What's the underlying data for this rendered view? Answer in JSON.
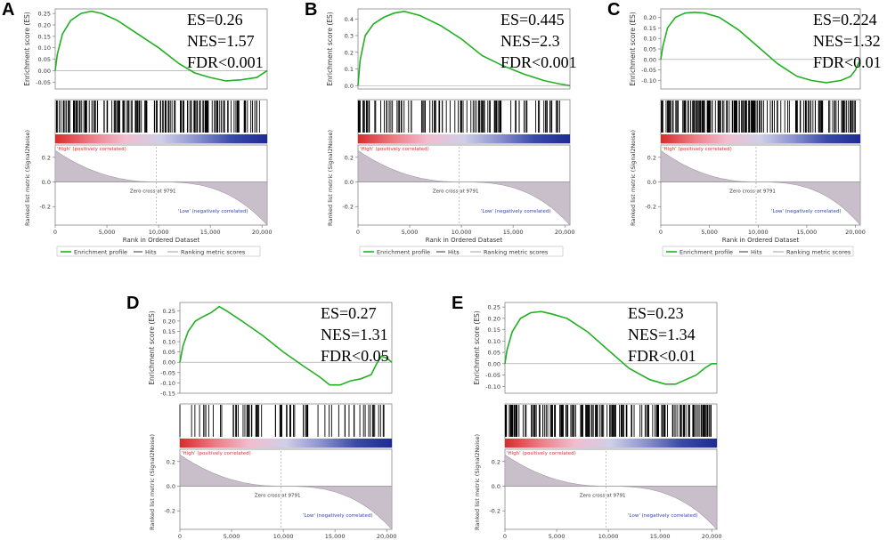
{
  "colors": {
    "es_line": "#22b022",
    "hit_line": "#000000",
    "metric_fill": "#c9bfcb",
    "metric_stroke": "#a598a8",
    "zero_line": "#999999",
    "gradient": [
      "#d72c2c",
      "#ee7d86",
      "#f2bdd0",
      "#cfcfe8",
      "#8a90cd",
      "#3a4aa8",
      "#1e2b94"
    ]
  },
  "common": {
    "es_ylabel": "Enrichment score (ES)",
    "metric_ylabel": "Ranked list metric (Signal2Noise)",
    "xlabel": "Rank in Ordered Dataset",
    "high_label": "'High' (positively correlated)",
    "low_label": "'Low' (negatively correlated)",
    "zero_cross": "Zero cross at 9791",
    "legend": [
      "Enrichment profile",
      "Hits",
      "Ranking metric scores"
    ],
    "x_ticks": [
      "0",
      "5,000",
      "10,000",
      "15,000",
      "20,000"
    ],
    "metric_ticks": [
      "0.2",
      "0.0",
      "-0.2"
    ]
  },
  "panels": [
    {
      "letter": "A",
      "stats": {
        "es": "ES=0.26",
        "nes": "NES=1.57",
        "fdr": "FDR<0.001"
      },
      "chart_data": {
        "type": "line",
        "title": "",
        "xlabel": "Rank in Ordered Dataset",
        "ylabel": "Enrichment score (ES)",
        "xlim": [
          0,
          20500
        ],
        "ylim": [
          -0.08,
          0.27
        ],
        "y_ticks": [
          0.25,
          0.2,
          0.15,
          0.1,
          0.05,
          0.0,
          -0.05
        ],
        "y_tick_labels": [
          "0.25",
          "0.20",
          "0.15",
          "0.10",
          "0.05",
          "0.00",
          "-0.05"
        ],
        "es_curve": {
          "x": [
            0,
            200,
            700,
            1500,
            2500,
            3500,
            4500,
            6000,
            8000,
            10000,
            12000,
            13500,
            15000,
            16500,
            18000,
            19500,
            20500
          ],
          "y": [
            0,
            0.07,
            0.16,
            0.22,
            0.25,
            0.26,
            0.25,
            0.22,
            0.16,
            0.1,
            0.03,
            -0.01,
            -0.03,
            -0.045,
            -0.04,
            -0.03,
            0.0
          ]
        },
        "hit_count": 170,
        "hit_density": "dense",
        "hits_end": 20000,
        "zero_cross": 9791,
        "metric_range": [
          0.3,
          -0.35
        ]
      }
    },
    {
      "letter": "B",
      "stats": {
        "es": "ES=0.445",
        "nes": "NES=2.3",
        "fdr": "FDR<0.001"
      },
      "chart_data": {
        "type": "line",
        "title": "",
        "xlabel": "Rank in Ordered Dataset",
        "ylabel": "Enrichment score (ES)",
        "xlim": [
          0,
          20500
        ],
        "ylim": [
          -0.02,
          0.46
        ],
        "y_ticks": [
          0.4,
          0.3,
          0.2,
          0.1,
          0.0
        ],
        "y_tick_labels": [
          "0.4",
          "0.3",
          "0.2",
          "0.1",
          "0.0"
        ],
        "es_curve": {
          "x": [
            0,
            200,
            700,
            1500,
            2500,
            3500,
            4500,
            6000,
            8000,
            10000,
            12000,
            14000,
            16000,
            18000,
            19500,
            20500
          ],
          "y": [
            0,
            0.15,
            0.3,
            0.37,
            0.41,
            0.435,
            0.445,
            0.42,
            0.36,
            0.28,
            0.18,
            0.12,
            0.07,
            0.03,
            0.01,
            0.0
          ]
        },
        "hit_count": 110,
        "hit_density": "medium",
        "hits_end": 20000,
        "zero_cross": 9791,
        "metric_range": [
          0.3,
          -0.35
        ]
      }
    },
    {
      "letter": "C",
      "stats": {
        "es": "ES=0.224",
        "nes": "NES=1.32",
        "fdr": "FDR<0.01"
      },
      "chart_data": {
        "type": "line",
        "title": "",
        "xlabel": "Rank in Ordered Dataset",
        "ylabel": "Enrichment score (ES)",
        "xlim": [
          0,
          20500
        ],
        "ylim": [
          -0.14,
          0.24
        ],
        "y_ticks": [
          0.2,
          0.15,
          0.1,
          0.05,
          0.0,
          -0.05,
          -0.1
        ],
        "y_tick_labels": [
          "0.20",
          "0.15",
          "0.10",
          "0.05",
          "0.00",
          "-0.05",
          "-0.10"
        ],
        "es_curve": {
          "x": [
            0,
            200,
            700,
            1500,
            2500,
            3500,
            4500,
            6000,
            8000,
            10000,
            12000,
            14000,
            15500,
            17000,
            18500,
            19500,
            20000,
            20500
          ],
          "y": [
            0,
            0.06,
            0.15,
            0.2,
            0.22,
            0.224,
            0.22,
            0.2,
            0.14,
            0.06,
            -0.02,
            -0.08,
            -0.1,
            -0.11,
            -0.1,
            -0.08,
            -0.05,
            0.0
          ]
        },
        "hit_count": 180,
        "hit_density": "dense",
        "hits_end": 20000,
        "zero_cross": 9791,
        "metric_range": [
          0.3,
          -0.35
        ]
      }
    },
    {
      "letter": "D",
      "stats": {
        "es": "ES=0.27",
        "nes": "NES=1.31",
        "fdr": "FDR<0.05"
      },
      "chart_data": {
        "type": "line",
        "title": "",
        "xlabel": "Rank in Ordered Dataset",
        "ylabel": "Enrichment score (ES)",
        "xlim": [
          0,
          20500
        ],
        "ylim": [
          -0.15,
          0.29
        ],
        "y_ticks": [
          0.25,
          0.2,
          0.15,
          0.1,
          0.05,
          0.0,
          -0.05,
          -0.1,
          -0.15
        ],
        "y_tick_labels": [
          "0.25",
          "0.20",
          "0.15",
          "0.10",
          "0.05",
          "0.00",
          "-0.05",
          "-0.10",
          "-0.15"
        ],
        "es_curve": {
          "x": [
            0,
            300,
            800,
            1500,
            2200,
            3000,
            3800,
            4500,
            6000,
            8000,
            10000,
            12000,
            13500,
            14500,
            15500,
            16500,
            17500,
            18500,
            19000,
            19500,
            20000,
            20500
          ],
          "y": [
            0,
            0.08,
            0.15,
            0.2,
            0.22,
            0.24,
            0.27,
            0.25,
            0.2,
            0.13,
            0.05,
            -0.02,
            -0.07,
            -0.11,
            -0.11,
            -0.09,
            -0.08,
            -0.06,
            -0.01,
            0.03,
            0.02,
            0.0
          ]
        },
        "hit_count": 75,
        "hit_density": "sparse",
        "hits_end": 20000,
        "zero_cross": 9791,
        "metric_range": [
          0.3,
          -0.35
        ]
      }
    },
    {
      "letter": "E",
      "stats": {
        "es": "ES=0.23",
        "nes": "NES=1.34",
        "fdr": "FDR<0.01"
      },
      "chart_data": {
        "type": "line",
        "title": "",
        "xlabel": "Rank in Ordered Dataset",
        "ylabel": "Enrichment score (ES)",
        "xlim": [
          0,
          20500
        ],
        "ylim": [
          -0.13,
          0.27
        ],
        "y_ticks": [
          0.25,
          0.2,
          0.15,
          0.1,
          0.05,
          0.0,
          -0.05,
          -0.1
        ],
        "y_tick_labels": [
          "0.25",
          "0.20",
          "0.15",
          "0.10",
          "0.05",
          "0.00",
          "-0.05",
          "-0.10"
        ],
        "es_curve": {
          "x": [
            0,
            200,
            700,
            1500,
            2500,
            3500,
            4500,
            6000,
            8000,
            10000,
            12000,
            14000,
            15500,
            16500,
            17500,
            18500,
            19300,
            20000,
            20500
          ],
          "y": [
            0,
            0.06,
            0.14,
            0.2,
            0.225,
            0.23,
            0.22,
            0.2,
            0.14,
            0.06,
            -0.02,
            -0.07,
            -0.09,
            -0.09,
            -0.07,
            -0.05,
            -0.02,
            0.0,
            0.0
          ]
        },
        "hit_count": 190,
        "hit_density": "dense",
        "hits_end": 20000,
        "zero_cross": 9791,
        "metric_range": [
          0.3,
          -0.35
        ]
      }
    }
  ]
}
